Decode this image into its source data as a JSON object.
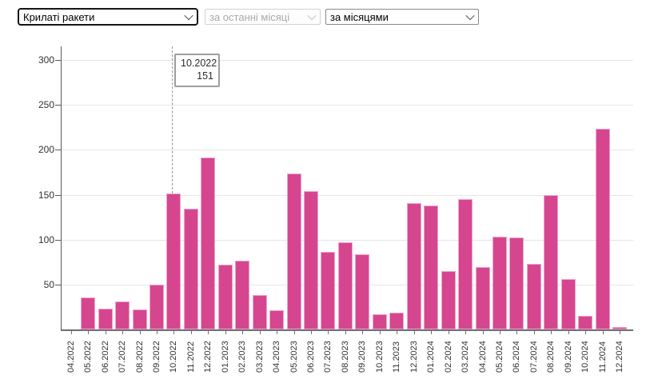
{
  "controls": {
    "weapon_select": {
      "value": "Крилаті ракети",
      "disabled": false
    },
    "period_select": {
      "value": "за останні місяці",
      "disabled": true
    },
    "grouping_select": {
      "value": "за місяцями",
      "disabled": false
    }
  },
  "tooltip": {
    "title": "10.2022",
    "value": "151"
  },
  "chart_data": {
    "type": "bar",
    "title": "",
    "xlabel": "",
    "ylabel": "",
    "categories": [
      "04.2022",
      "05.2022",
      "06.2022",
      "07.2022",
      "08.2022",
      "09.2022",
      "10.2022",
      "11.2022",
      "12.2022",
      "01.2023",
      "02.2023",
      "03.2023",
      "04.2023",
      "05.2023",
      "06.2023",
      "07.2023",
      "08.2023",
      "09.2023",
      "10.2023",
      "11.2023",
      "12.2023",
      "01.2024",
      "02.2024",
      "03.2024",
      "04.2024",
      "05.2024",
      "06.2024",
      "07.2024",
      "08.2024",
      "09.2024",
      "10.2024",
      "11.2024",
      "12.2024"
    ],
    "values": [
      0,
      36,
      23,
      31,
      22,
      50,
      151,
      134,
      191,
      72,
      77,
      38,
      21,
      174,
      154,
      86,
      97,
      84,
      17,
      19,
      141,
      138,
      65,
      145,
      69,
      103,
      102,
      73,
      150,
      56,
      15,
      223,
      3
    ],
    "yticks": [
      50,
      100,
      150,
      200,
      250,
      300
    ],
    "ylim": [
      0,
      312
    ],
    "grid": true,
    "legend": false,
    "highlight": {
      "category": "10.2022",
      "value": 151
    },
    "bar_color": "#d6468f",
    "bar_border_color": "#f0a3cd",
    "grid_color": "#e6e6e6",
    "axis_color": "#6e6e6e",
    "dash_color": "#979797"
  }
}
